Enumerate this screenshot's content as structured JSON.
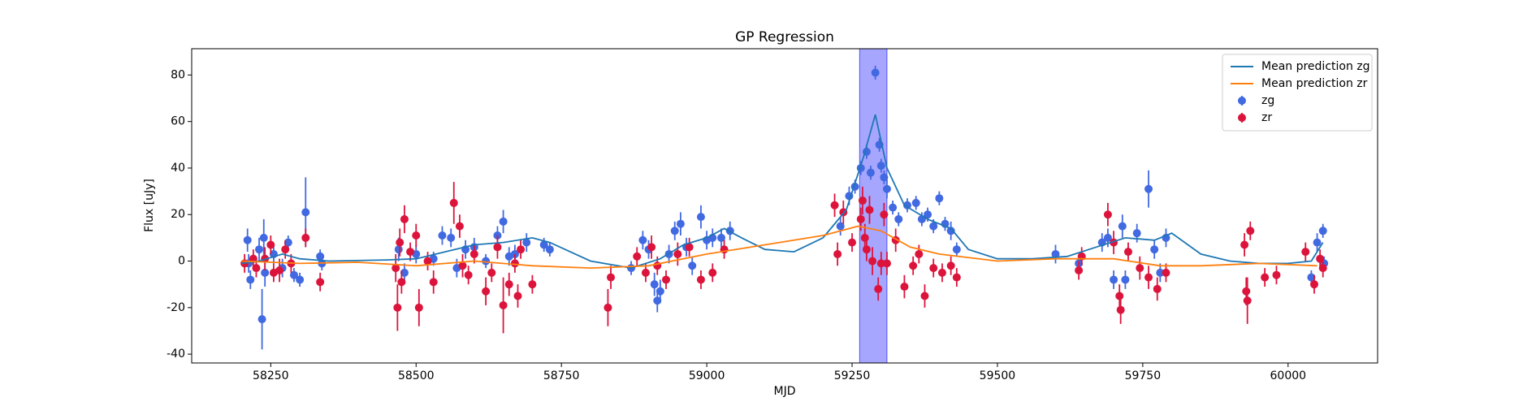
{
  "chart_data": {
    "type": "errorbar",
    "title": "GP Regression",
    "x_label": "MJD",
    "y_label": "Flux [uJy]",
    "xlim": [
      58114,
      60154
    ],
    "ylim": [
      -43.8,
      91.3
    ],
    "xticks": [
      58250,
      58500,
      58750,
      59000,
      59250,
      59500,
      59750,
      60000
    ],
    "yticks": [
      -40,
      -20,
      0,
      20,
      40,
      60,
      80
    ],
    "legend": "upper right",
    "span": [
      59263,
      59310
    ],
    "span_color": "#0000ff",
    "series": [
      {
        "name": "Mean prediction zg",
        "style": "line",
        "color": "#1f77b4",
        "x": [
          58200,
          58230,
          58270,
          58300,
          58350,
          58450,
          58500,
          58550,
          58600,
          58650,
          58700,
          58730,
          58800,
          58870,
          58920,
          58960,
          59000,
          59030,
          59060,
          59100,
          59150,
          59200,
          59240,
          59270,
          59290,
          59310,
          59340,
          59380,
          59420,
          59450,
          59500,
          59560,
          59620,
          59670,
          59720,
          59770,
          59800,
          59850,
          59900,
          59950,
          60000,
          60040,
          60060
        ],
        "values": [
          -1,
          0,
          3,
          1,
          0,
          0.5,
          1,
          4,
          7,
          8,
          10,
          8,
          0,
          -3,
          1,
          7,
          10,
          14,
          10,
          5,
          4,
          10,
          22,
          45,
          63,
          40,
          24,
          18,
          14,
          5,
          1,
          1,
          2,
          6,
          10,
          9,
          12,
          3,
          0,
          -1,
          -1,
          0,
          8
        ]
      },
      {
        "name": "Mean prediction zr",
        "style": "line",
        "color": "#ff7f0e",
        "x": [
          58200,
          58300,
          58400,
          58500,
          58600,
          58700,
          58800,
          58900,
          59000,
          59100,
          59200,
          59260,
          59300,
          59350,
          59400,
          59500,
          59600,
          59700,
          59780,
          59850,
          59950,
          60050
        ],
        "values": [
          0,
          -1,
          -0.5,
          -2,
          0,
          -2,
          -3,
          -2,
          3,
          7,
          11,
          15,
          13,
          6,
          3,
          0,
          1,
          1,
          -2,
          -2,
          -1,
          -2
        ]
      },
      {
        "name": "zg",
        "style": "errorbar",
        "color": "#4169e1",
        "x": [
          58210,
          58212,
          58215,
          58230,
          58235,
          58238,
          58240,
          58255,
          58270,
          58280,
          58290,
          58300,
          58310,
          58335,
          58338,
          58470,
          58480,
          58500,
          58530,
          58545,
          58560,
          58570,
          58585,
          58600,
          58620,
          58640,
          58650,
          58660,
          58670,
          58690,
          58720,
          58730,
          58870,
          58890,
          58900,
          58910,
          58915,
          58920,
          58935,
          58945,
          58955,
          58965,
          58975,
          58990,
          59000,
          59010,
          59025,
          59040,
          59230,
          59245,
          59255,
          59265,
          59275,
          59282,
          59290,
          59297,
          59300,
          59305,
          59310,
          59320,
          59330,
          59345,
          59360,
          59370,
          59380,
          59390,
          59400,
          59410,
          59420,
          59430,
          59600,
          59640,
          59680,
          59690,
          59700,
          59715,
          59720,
          59740,
          59760,
          59770,
          59780,
          59790,
          60040,
          60050,
          60060,
          60062
        ],
        "values": [
          9,
          -1,
          -8,
          5,
          -25,
          10,
          -5,
          3,
          -3,
          8,
          -6,
          -8,
          21,
          2,
          -1,
          5,
          -5,
          3,
          1,
          11,
          10,
          -3,
          5,
          6,
          0,
          11,
          17,
          2,
          3,
          8,
          7,
          5,
          -3,
          9,
          5,
          -10,
          -17,
          -13,
          3,
          13,
          16,
          6,
          -2,
          19,
          9,
          10,
          10,
          13,
          15,
          28,
          32,
          40,
          47,
          38,
          81,
          50,
          41,
          36,
          31,
          23,
          18,
          24,
          25,
          18,
          20,
          15,
          27,
          16,
          13,
          5,
          3,
          -1,
          8,
          10,
          -8,
          15,
          -8,
          12,
          31,
          5,
          -5,
          10,
          -7,
          8,
          13,
          -1
        ],
        "errors": [
          5,
          4,
          4,
          5,
          13,
          8,
          6,
          4,
          4,
          3,
          3,
          3,
          15,
          3,
          3,
          5,
          4,
          4,
          3,
          4,
          4,
          4,
          4,
          4,
          3,
          4,
          5,
          4,
          4,
          4,
          3,
          3,
          3,
          4,
          4,
          5,
          5,
          5,
          4,
          4,
          5,
          4,
          4,
          5,
          4,
          4,
          4,
          4,
          4,
          4,
          3,
          3,
          3,
          3,
          3,
          3,
          3,
          3,
          4,
          3,
          3,
          3,
          3,
          3,
          3,
          3,
          3,
          3,
          4,
          3,
          4,
          3,
          4,
          4,
          4,
          5,
          4,
          4,
          8,
          4,
          4,
          4,
          3,
          4,
          3,
          3
        ]
      },
      {
        "name": "zr",
        "style": "errorbar",
        "color": "#dc143c",
        "x": [
          58205,
          58220,
          58225,
          58240,
          58250,
          58255,
          58265,
          58275,
          58285,
          58310,
          58335,
          58465,
          58468,
          58472,
          58475,
          58480,
          58490,
          58500,
          58505,
          58520,
          58530,
          58565,
          58575,
          58580,
          58590,
          58600,
          58620,
          58630,
          58640,
          58650,
          58660,
          58670,
          58675,
          58680,
          58700,
          58830,
          58835,
          58880,
          58895,
          58905,
          58915,
          58930,
          58950,
          58970,
          58990,
          59010,
          59030,
          59220,
          59225,
          59235,
          59250,
          59265,
          59268,
          59272,
          59275,
          59280,
          59285,
          59295,
          59300,
          59305,
          59310,
          59325,
          59340,
          59355,
          59365,
          59375,
          59390,
          59405,
          59420,
          59430,
          59640,
          59645,
          59690,
          59700,
          59712,
          59710,
          59725,
          59745,
          59760,
          59775,
          59790,
          59925,
          59928,
          59930,
          59935,
          59960,
          59980,
          60030,
          60045,
          60055,
          60060
        ],
        "values": [
          -1,
          1,
          -3,
          1,
          7,
          -5,
          -4,
          5,
          -1,
          10,
          -9,
          -3,
          -20,
          8,
          -9,
          18,
          4,
          11,
          -20,
          0,
          -9,
          25,
          15,
          -2,
          -6,
          3,
          -13,
          -5,
          6,
          -19,
          -10,
          -1,
          -15,
          5,
          -10,
          -20,
          -7,
          2,
          -5,
          6,
          -2,
          -8,
          3,
          6,
          -8,
          -5,
          5,
          24,
          3,
          21,
          8,
          18,
          26,
          10,
          5,
          22,
          0,
          -12,
          -1,
          20,
          -1,
          9,
          -11,
          -2,
          3,
          -15,
          -3,
          -5,
          -2,
          -7,
          -4,
          2,
          20,
          8,
          -21,
          -15,
          4,
          -3,
          -7,
          -12,
          -5,
          7,
          -13,
          -17,
          13,
          -7,
          -6,
          4,
          -10,
          1,
          -3
        ],
        "errors": [
          4,
          4,
          4,
          5,
          4,
          4,
          5,
          4,
          4,
          4,
          4,
          6,
          10,
          6,
          5,
          6,
          4,
          5,
          8,
          4,
          5,
          9,
          5,
          5,
          4,
          4,
          6,
          4,
          5,
          12,
          5,
          4,
          5,
          4,
          4,
          8,
          5,
          4,
          4,
          5,
          4,
          4,
          5,
          4,
          4,
          4,
          4,
          5,
          5,
          5,
          4,
          5,
          6,
          6,
          5,
          6,
          6,
          5,
          5,
          5,
          5,
          5,
          5,
          4,
          4,
          5,
          4,
          4,
          4,
          4,
          4,
          4,
          5,
          5,
          6,
          5,
          4,
          5,
          5,
          5,
          4,
          5,
          6,
          10,
          4,
          4,
          4,
          4,
          4,
          4,
          4
        ]
      }
    ]
  }
}
